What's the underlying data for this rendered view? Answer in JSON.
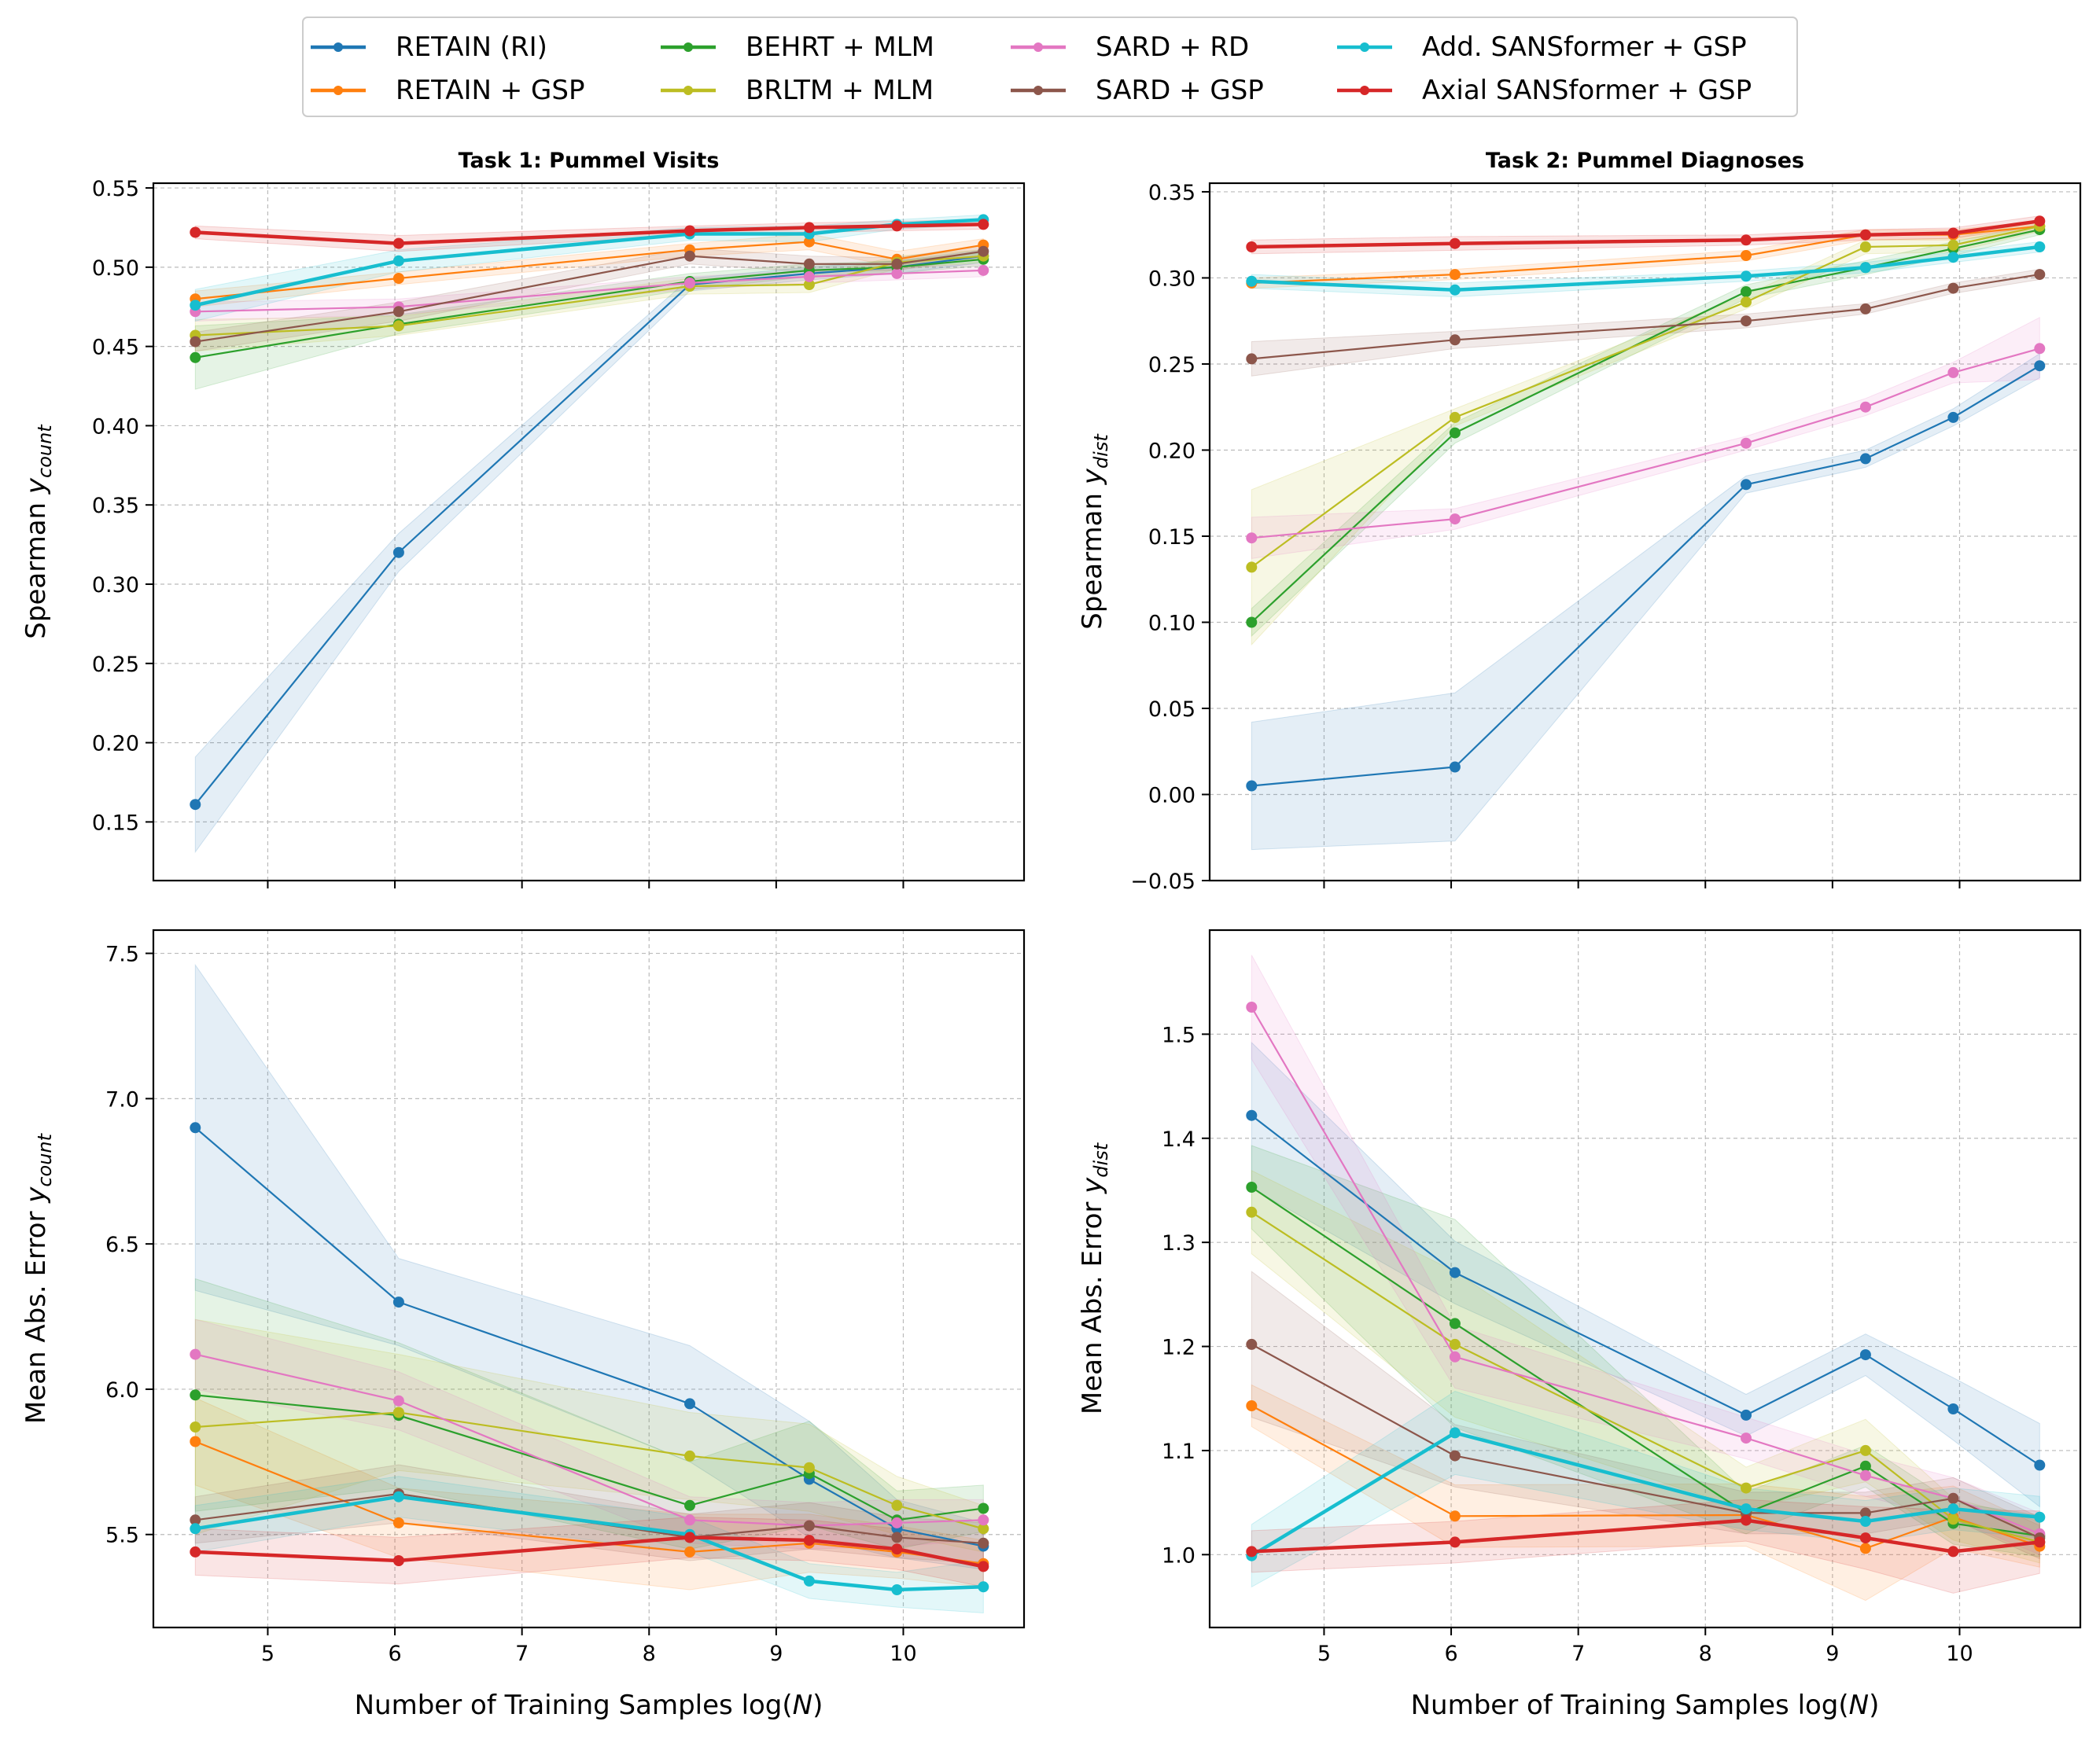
{
  "legend": [
    {
      "name": "RETAIN (RI)",
      "color": "#1f77b4"
    },
    {
      "name": "RETAIN + GSP",
      "color": "#ff7f0e"
    },
    {
      "name": "BEHRT + MLM",
      "color": "#2ca02c"
    },
    {
      "name": "BRLTM + MLM",
      "color": "#bcbd22"
    },
    {
      "name": "SARD + RD",
      "color": "#e377c2"
    },
    {
      "name": "SARD + GSP",
      "color": "#8c564b"
    },
    {
      "name": "Add. SANSformer + GSP",
      "color": "#17becf"
    },
    {
      "name": "Axial SANSformer + GSP",
      "color": "#d62728"
    }
  ],
  "chart_data": [
    {
      "type": "line",
      "panel": "top-left",
      "title": "Task 1: Pummel Visits",
      "xlabel": "",
      "ylabel_main": "Spearman ",
      "ylabel_var": "y",
      "ylabel_sub": "count",
      "xlim": [
        4.1,
        10.95
      ],
      "ylim": [
        0.113,
        0.553
      ],
      "xticks": [
        5,
        6,
        7,
        8,
        9,
        10
      ],
      "xtick_labels": [
        "",
        "",
        "",
        "",
        "",
        ""
      ],
      "yticks": [
        0.15,
        0.2,
        0.25,
        0.3,
        0.35,
        0.4,
        0.45,
        0.5,
        0.55
      ],
      "ytick_labels": [
        "0.15",
        "0.20",
        "0.25",
        "0.30",
        "0.35",
        "0.40",
        "0.45",
        "0.50",
        "0.55"
      ],
      "x": [
        4.43,
        6.03,
        8.32,
        9.26,
        9.95,
        10.63
      ],
      "series": [
        {
          "name": "RETAIN (RI)",
          "values": [
            0.161,
            0.32,
            0.489,
            0.496,
            0.5,
            0.507
          ],
          "band": [
            0.03,
            0.012,
            0.004,
            0.004,
            0.004,
            0.004
          ]
        },
        {
          "name": "RETAIN + GSP",
          "values": [
            0.48,
            0.493,
            0.511,
            0.516,
            0.505,
            0.514
          ],
          "band": [
            0.005,
            0.004,
            0.004,
            0.005,
            0.005,
            0.004
          ]
        },
        {
          "name": "BEHRT + MLM",
          "values": [
            0.443,
            0.464,
            0.491,
            0.498,
            0.5,
            0.505
          ],
          "band": [
            0.02,
            0.006,
            0.005,
            0.004,
            0.004,
            0.004
          ]
        },
        {
          "name": "BRLTM + MLM",
          "values": [
            0.457,
            0.463,
            0.488,
            0.489,
            0.503,
            0.507
          ],
          "band": [
            0.01,
            0.006,
            0.005,
            0.005,
            0.004,
            0.004
          ]
        },
        {
          "name": "SARD + RD",
          "values": [
            0.472,
            0.475,
            0.49,
            0.494,
            0.496,
            0.498
          ],
          "band": [
            0.006,
            0.005,
            0.004,
            0.004,
            0.004,
            0.004
          ]
        },
        {
          "name": "SARD + GSP",
          "values": [
            0.453,
            0.472,
            0.507,
            0.502,
            0.502,
            0.51
          ],
          "band": [
            0.006,
            0.006,
            0.005,
            0.005,
            0.004,
            0.004
          ]
        },
        {
          "name": "Add. SANSformer + GSP",
          "values": [
            0.476,
            0.504,
            0.521,
            0.521,
            0.527,
            0.53
          ],
          "band": [
            0.01,
            0.007,
            0.004,
            0.005,
            0.003,
            0.003
          ]
        },
        {
          "name": "Axial SANSformer + GSP",
          "values": [
            0.522,
            0.515,
            0.523,
            0.525,
            0.526,
            0.527
          ],
          "band": [
            0.004,
            0.005,
            0.003,
            0.003,
            0.003,
            0.003
          ]
        }
      ]
    },
    {
      "type": "line",
      "panel": "top-right",
      "title": "Task 2: Pummel Diagnoses",
      "xlabel": "",
      "ylabel_main": "Spearman ",
      "ylabel_var": "y",
      "ylabel_sub": "dist",
      "xlim": [
        4.1,
        10.95
      ],
      "ylim": [
        -0.05,
        0.355
      ],
      "xticks": [
        5,
        6,
        7,
        8,
        9,
        10
      ],
      "xtick_labels": [
        "",
        "",
        "",
        "",
        "",
        ""
      ],
      "yticks": [
        -0.05,
        0.0,
        0.05,
        0.1,
        0.15,
        0.2,
        0.25,
        0.3,
        0.35
      ],
      "ytick_labels": [
        "−0.05",
        "0.00",
        "0.05",
        "0.10",
        "0.15",
        "0.20",
        "0.25",
        "0.30",
        "0.35"
      ],
      "x": [
        4.43,
        6.03,
        8.32,
        9.26,
        9.95,
        10.63
      ],
      "series": [
        {
          "name": "RETAIN (RI)",
          "values": [
            0.005,
            0.016,
            0.18,
            0.195,
            0.219,
            0.249
          ],
          "band": [
            0.037,
            0.043,
            0.005,
            0.005,
            0.005,
            0.007
          ]
        },
        {
          "name": "RETAIN + GSP",
          "values": [
            0.297,
            0.302,
            0.313,
            0.325,
            0.325,
            0.33
          ],
          "band": [
            0.003,
            0.003,
            0.003,
            0.003,
            0.003,
            0.003
          ]
        },
        {
          "name": "BEHRT + MLM",
          "values": [
            0.1,
            0.21,
            0.292,
            0.306,
            0.317,
            0.328
          ],
          "band": [
            0.008,
            0.006,
            0.004,
            0.004,
            0.004,
            0.003
          ]
        },
        {
          "name": "BRLTM + MLM",
          "values": [
            0.132,
            0.219,
            0.286,
            0.318,
            0.319,
            0.33
          ],
          "band": [
            0.045,
            0.005,
            0.004,
            0.004,
            0.004,
            0.003
          ]
        },
        {
          "name": "SARD + RD",
          "values": [
            0.149,
            0.16,
            0.204,
            0.225,
            0.245,
            0.259
          ],
          "band": [
            0.012,
            0.006,
            0.004,
            0.005,
            0.006,
            0.018
          ]
        },
        {
          "name": "SARD + GSP",
          "values": [
            0.253,
            0.264,
            0.275,
            0.282,
            0.294,
            0.302
          ],
          "band": [
            0.01,
            0.005,
            0.004,
            0.003,
            0.003,
            0.003
          ]
        },
        {
          "name": "Add. SANSformer + GSP",
          "values": [
            0.298,
            0.293,
            0.301,
            0.306,
            0.312,
            0.318
          ],
          "band": [
            0.004,
            0.004,
            0.003,
            0.003,
            0.003,
            0.003
          ]
        },
        {
          "name": "Axial SANSformer + GSP",
          "values": [
            0.318,
            0.32,
            0.322,
            0.325,
            0.326,
            0.333
          ],
          "band": [
            0.004,
            0.004,
            0.003,
            0.003,
            0.003,
            0.003
          ]
        }
      ]
    },
    {
      "type": "line",
      "panel": "bottom-left",
      "title": "",
      "xlabel": "Number of Training Samples log(",
      "xlabel_var": "N",
      "xlabel_end": ")",
      "ylabel_main": "Mean Abs. Error ",
      "ylabel_var": "y",
      "ylabel_sub": "count",
      "xlim": [
        4.1,
        10.95
      ],
      "ylim": [
        5.18,
        7.58
      ],
      "xticks": [
        5,
        6,
        7,
        8,
        9,
        10
      ],
      "xtick_labels": [
        "5",
        "6",
        "7",
        "8",
        "9",
        "10"
      ],
      "yticks": [
        5.5,
        6.0,
        6.5,
        7.0,
        7.5
      ],
      "ytick_labels": [
        "5.5",
        "6.0",
        "6.5",
        "7.0",
        "7.5"
      ],
      "x": [
        4.43,
        6.03,
        8.32,
        9.26,
        9.95,
        10.63
      ],
      "series": [
        {
          "name": "RETAIN (RI)",
          "values": [
            6.9,
            6.3,
            5.95,
            5.69,
            5.52,
            5.46
          ],
          "band": [
            0.56,
            0.15,
            0.2,
            0.2,
            0.1,
            0.08
          ]
        },
        {
          "name": "RETAIN + GSP",
          "values": [
            5.82,
            5.54,
            5.44,
            5.47,
            5.44,
            5.4
          ],
          "band": [
            0.15,
            0.12,
            0.13,
            0.1,
            0.09,
            0.08
          ]
        },
        {
          "name": "BEHRT + MLM",
          "values": [
            5.98,
            5.91,
            5.6,
            5.71,
            5.55,
            5.59
          ],
          "band": [
            0.4,
            0.25,
            0.15,
            0.18,
            0.1,
            0.08
          ]
        },
        {
          "name": "BRLTM + MLM",
          "values": [
            5.87,
            5.92,
            5.77,
            5.73,
            5.6,
            5.52
          ],
          "band": [
            0.37,
            0.2,
            0.15,
            0.15,
            0.1,
            0.08
          ]
        },
        {
          "name": "SARD + RD",
          "values": [
            6.12,
            5.96,
            5.55,
            5.53,
            5.54,
            5.55
          ],
          "band": [
            0.12,
            0.1,
            0.08,
            0.08,
            0.08,
            0.07
          ]
        },
        {
          "name": "SARD + GSP",
          "values": [
            5.55,
            5.64,
            5.49,
            5.53,
            5.49,
            5.47
          ],
          "band": [
            0.08,
            0.1,
            0.08,
            0.08,
            0.07,
            0.07
          ]
        },
        {
          "name": "Add. SANSformer + GSP",
          "values": [
            5.52,
            5.63,
            5.5,
            5.34,
            5.31,
            5.32
          ],
          "band": [
            0.08,
            0.07,
            0.06,
            0.06,
            0.06,
            0.09
          ]
        },
        {
          "name": "Axial SANSformer + GSP",
          "values": [
            5.44,
            5.41,
            5.49,
            5.48,
            5.45,
            5.39
          ],
          "band": [
            0.08,
            0.08,
            0.07,
            0.07,
            0.07,
            0.07
          ]
        }
      ]
    },
    {
      "type": "line",
      "panel": "bottom-right",
      "title": "",
      "xlabel": "Number of Training Samples log(",
      "xlabel_var": "N",
      "xlabel_end": ")",
      "ylabel_main": "Mean Abs. Error ",
      "ylabel_var": "y",
      "ylabel_sub": "dist",
      "xlim": [
        4.1,
        10.95
      ],
      "ylim": [
        0.93,
        1.6
      ],
      "xticks": [
        5,
        6,
        7,
        8,
        9,
        10
      ],
      "xtick_labels": [
        "5",
        "6",
        "7",
        "8",
        "9",
        "10"
      ],
      "yticks": [
        1.0,
        1.1,
        1.2,
        1.3,
        1.4,
        1.5
      ],
      "ytick_labels": [
        "1.0",
        "1.1",
        "1.2",
        "1.3",
        "1.4",
        "1.5"
      ],
      "x": [
        4.43,
        6.03,
        8.32,
        9.26,
        9.95,
        10.63
      ],
      "series": [
        {
          "name": "RETAIN (RI)",
          "values": [
            1.422,
            1.271,
            1.134,
            1.192,
            1.14,
            1.086
          ],
          "band": [
            0.07,
            0.03,
            0.02,
            0.02,
            0.03,
            0.04
          ]
        },
        {
          "name": "RETAIN + GSP",
          "values": [
            1.143,
            1.037,
            1.038,
            1.006,
            1.036,
            1.008
          ],
          "band": [
            0.02,
            0.03,
            0.03,
            0.05,
            0.03,
            0.02
          ]
        },
        {
          "name": "BEHRT + MLM",
          "values": [
            1.353,
            1.222,
            1.04,
            1.085,
            1.03,
            1.018
          ],
          "band": [
            0.04,
            0.1,
            0.02,
            0.02,
            0.02,
            0.02
          ]
        },
        {
          "name": "BRLTM + MLM",
          "values": [
            1.329,
            1.202,
            1.064,
            1.1,
            1.034,
            1.012
          ],
          "band": [
            0.04,
            0.07,
            0.02,
            0.03,
            0.02,
            0.02
          ]
        },
        {
          "name": "SARD + RD",
          "values": [
            1.526,
            1.19,
            1.112,
            1.076,
            1.054,
            1.02
          ],
          "band": [
            0.05,
            0.03,
            0.02,
            0.02,
            0.02,
            0.02
          ]
        },
        {
          "name": "SARD + GSP",
          "values": [
            1.202,
            1.095,
            1.04,
            1.04,
            1.054,
            1.016
          ],
          "band": [
            0.07,
            0.03,
            0.02,
            0.02,
            0.02,
            0.02
          ]
        },
        {
          "name": "Add. SANSformer + GSP",
          "values": [
            0.999,
            1.117,
            1.044,
            1.032,
            1.044,
            1.036
          ],
          "band": [
            0.03,
            0.04,
            0.02,
            0.02,
            0.02,
            0.02
          ]
        },
        {
          "name": "Axial SANSformer + GSP",
          "values": [
            1.003,
            1.012,
            1.033,
            1.016,
            1.003,
            1.012
          ],
          "band": [
            0.02,
            0.02,
            0.02,
            0.03,
            0.04,
            0.03
          ]
        }
      ]
    }
  ]
}
